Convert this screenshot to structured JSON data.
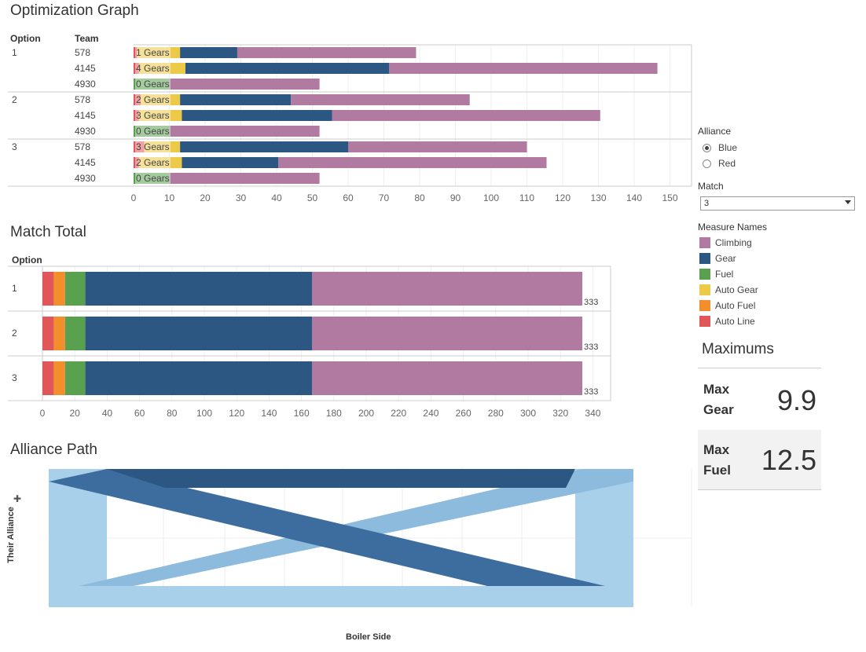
{
  "optimization": {
    "title": "Optimization Graph",
    "col_option": "Option",
    "col_team": "Team",
    "axis_ticks": [
      "0",
      "10",
      "20",
      "30",
      "40",
      "50",
      "60",
      "70",
      "80",
      "90",
      "100",
      "110",
      "120",
      "130",
      "140",
      "150"
    ],
    "options": [
      {
        "option": "1",
        "rows": [
          {
            "team": "578",
            "gears_label": "1 Gears",
            "segments": {
              "auto_line": 1,
              "auto_fuel": 0,
              "auto_gear": 12,
              "fuel": 0,
              "gear": 16,
              "climbing": 50
            }
          },
          {
            "team": "4145",
            "gears_label": "4 Gears",
            "segments": {
              "auto_line": 1.5,
              "auto_fuel": 0,
              "auto_gear": 13,
              "fuel": 0,
              "gear": 57,
              "climbing": 75
            }
          },
          {
            "team": "4930",
            "gears_label": "0 Gears",
            "segments": {
              "auto_line": 0,
              "auto_fuel": 0,
              "auto_gear": 0,
              "fuel": 10,
              "gear": 0,
              "climbing": 42
            }
          }
        ]
      },
      {
        "option": "2",
        "rows": [
          {
            "team": "578",
            "gears_label": "2 Gears",
            "segments": {
              "auto_line": 2,
              "auto_fuel": 0,
              "auto_gear": 11,
              "fuel": 0,
              "gear": 31,
              "climbing": 50
            }
          },
          {
            "team": "4145",
            "gears_label": "3 Gears",
            "segments": {
              "auto_line": 1.5,
              "auto_fuel": 0,
              "auto_gear": 12,
              "fuel": 0,
              "gear": 42,
              "climbing": 75
            }
          },
          {
            "team": "4930",
            "gears_label": "0 Gears",
            "segments": {
              "auto_line": 0,
              "auto_fuel": 0,
              "auto_gear": 0,
              "fuel": 10,
              "gear": 0,
              "climbing": 42
            }
          }
        ]
      },
      {
        "option": "3",
        "rows": [
          {
            "team": "578",
            "gears_label": "3 Gears",
            "segments": {
              "auto_line": 3,
              "auto_fuel": 0,
              "auto_gear": 10,
              "fuel": 0,
              "gear": 47,
              "climbing": 50
            }
          },
          {
            "team": "4145",
            "gears_label": "2 Gears",
            "segments": {
              "auto_line": 1.5,
              "auto_fuel": 0,
              "auto_gear": 12,
              "fuel": 0,
              "gear": 27,
              "climbing": 75
            }
          },
          {
            "team": "4930",
            "gears_label": "0 Gears",
            "segments": {
              "auto_line": 0,
              "auto_fuel": 0,
              "auto_gear": 0,
              "fuel": 10,
              "gear": 0,
              "climbing": 42
            }
          }
        ]
      }
    ]
  },
  "match_total": {
    "title": "Match Total",
    "col_option": "Option",
    "axis_ticks": [
      "0",
      "20",
      "40",
      "60",
      "80",
      "100",
      "120",
      "140",
      "160",
      "180",
      "200",
      "220",
      "240",
      "260",
      "280",
      "300",
      "320",
      "340"
    ],
    "rows": [
      {
        "option": "1",
        "total": "333",
        "segments": {
          "auto_line": 7,
          "auto_fuel": 7,
          "fuel": 12.5,
          "gear": 140,
          "climbing": 167
        }
      },
      {
        "option": "2",
        "total": "333",
        "segments": {
          "auto_line": 7,
          "auto_fuel": 7,
          "fuel": 12.5,
          "gear": 140,
          "climbing": 167
        }
      },
      {
        "option": "3",
        "total": "333",
        "segments": {
          "auto_line": 7,
          "auto_fuel": 7,
          "fuel": 12.5,
          "gear": 140,
          "climbing": 167
        }
      }
    ]
  },
  "alliance_path": {
    "title": "Alliance Path",
    "y_label": "Their Alliance",
    "x_label": "Boiler Side"
  },
  "filters": {
    "alliance_title": "Alliance",
    "alliance_options": [
      {
        "label": "Blue",
        "selected": true
      },
      {
        "label": "Red",
        "selected": false
      }
    ],
    "match_title": "Match",
    "match_value": "3"
  },
  "legend": {
    "title": "Measure Names",
    "items": [
      {
        "label": "Climbing",
        "color": "#b07aa1"
      },
      {
        "label": "Gear",
        "color": "#2c5783"
      },
      {
        "label": "Fuel",
        "color": "#59a14f"
      },
      {
        "label": "Auto Gear",
        "color": "#edc948"
      },
      {
        "label": "Auto Fuel",
        "color": "#f28e2b"
      },
      {
        "label": "Auto Line",
        "color": "#e15759"
      }
    ]
  },
  "maximums": {
    "title": "Maximums",
    "gear_label_1": "Max",
    "gear_label_2": "Gear",
    "gear_value": "9.9",
    "fuel_label_1": "Max",
    "fuel_label_2": "Fuel",
    "fuel_value": "12.5"
  },
  "colors": {
    "climbing": "#b07aa1",
    "gear": "#2c5783",
    "fuel": "#59a14f",
    "auto_gear": "#edc948",
    "auto_fuel": "#f28e2b",
    "auto_line": "#e15759",
    "path_dark": "#2c5783",
    "path_mid": "#3d6d9e",
    "path_light": "#a9d0ea",
    "path_light2": "#8dbbdd"
  }
}
